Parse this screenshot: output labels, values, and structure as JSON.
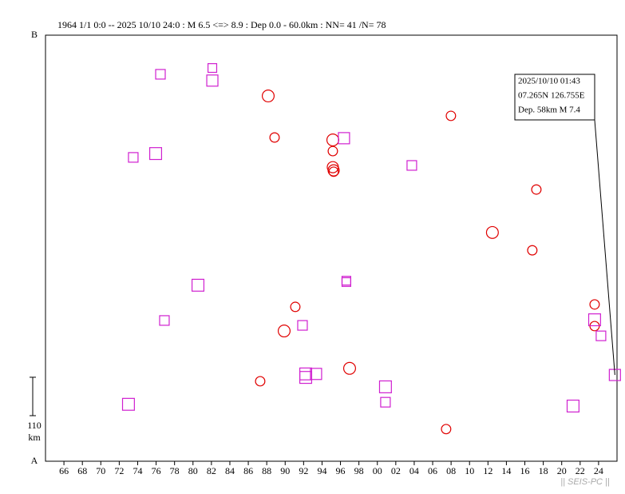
{
  "chart_data": {
    "type": "scatter",
    "title": "1964 1/1 0:0 -- 2025 10/10 24:0  : M 6.5 <=> 8.9  : Dep 0.0 - 60.0km :  NN= 41 /N= 78",
    "y_end_labels": [
      "A",
      "B"
    ],
    "scale_bar": {
      "length": 110,
      "label": "110",
      "unit": "km"
    },
    "watermark": "|| SEIS-PC ||",
    "xlim": [
      1964,
      2026
    ],
    "ylim": [
      0,
      1220
    ],
    "xticks": [
      {
        "value": 1966,
        "label": "66"
      },
      {
        "value": 1968,
        "label": "68"
      },
      {
        "value": 1970,
        "label": "70"
      },
      {
        "value": 1972,
        "label": "72"
      },
      {
        "value": 1974,
        "label": "74"
      },
      {
        "value": 1976,
        "label": "76"
      },
      {
        "value": 1978,
        "label": "78"
      },
      {
        "value": 1980,
        "label": "80"
      },
      {
        "value": 1982,
        "label": "82"
      },
      {
        "value": 1984,
        "label": "84"
      },
      {
        "value": 1986,
        "label": "86"
      },
      {
        "value": 1988,
        "label": "88"
      },
      {
        "value": 1990,
        "label": "90"
      },
      {
        "value": 1992,
        "label": "92"
      },
      {
        "value": 1994,
        "label": "94"
      },
      {
        "value": 1996,
        "label": "96"
      },
      {
        "value": 1998,
        "label": "98"
      },
      {
        "value": 2000,
        "label": "00"
      },
      {
        "value": 2002,
        "label": "02"
      },
      {
        "value": 2004,
        "label": "04"
      },
      {
        "value": 2006,
        "label": "06"
      },
      {
        "value": 2008,
        "label": "08"
      },
      {
        "value": 2010,
        "label": "10"
      },
      {
        "value": 2012,
        "label": "12"
      },
      {
        "value": 2014,
        "label": "14"
      },
      {
        "value": 2016,
        "label": "16"
      },
      {
        "value": 2018,
        "label": "18"
      },
      {
        "value": 2020,
        "label": "20"
      },
      {
        "value": 2022,
        "label": "22"
      },
      {
        "value": 2024,
        "label": "24"
      }
    ],
    "series": [
      {
        "marker": "circle",
        "color": "#e00000",
        "x": [
          1988.16,
          2007.98,
          1988.85,
          1995.17,
          1995.17,
          1995.17,
          1995.26,
          1995.26,
          2017.25,
          2012.48,
          2016.81,
          1991.1,
          1989.89,
          2023.57,
          2023.57,
          1996.99,
          1987.29,
          2007.46
        ],
        "values": [
          1046,
          989,
          927,
          920,
          888,
          842,
          833,
          829,
          778,
          655,
          604,
          442,
          373,
          449,
          387,
          266,
          229,
          92
        ],
        "sizes": [
          7.6,
          6.9,
          6.9,
          7.6,
          6.9,
          7.4,
          7.4,
          6.9,
          6.9,
          7.6,
          6.9,
          6.9,
          7.6,
          6.9,
          6.9,
          7.6,
          6.9,
          6.9
        ]
      },
      {
        "marker": "square",
        "color": "#d020d0",
        "x": [
          1976.47,
          1982.1,
          1982.1,
          1973.52,
          1975.95,
          1996.38,
          2003.74,
          1980.54,
          1996.64,
          1996.64,
          1976.9,
          1991.88,
          1992.23,
          1992.23,
          1993.35,
          2000.88,
          2000.88,
          1973.0,
          2023.57,
          2024.26,
          2021.23,
          2025.77
        ],
        "values": [
          1108,
          1126,
          1090,
          870,
          881,
          925,
          847,
          504,
          517,
          513,
          403,
          389,
          250,
          240,
          250,
          213,
          169,
          163,
          405,
          359,
          158,
          247
        ],
        "sizes": [
          6.95,
          6.7,
          7.4,
          6.95,
          7.6,
          7.4,
          6.95,
          7.6,
          6.7,
          6.7,
          6.95,
          6.95,
          7.6,
          7.6,
          7.4,
          7.6,
          6.95,
          7.6,
          7.6,
          6.95,
          7.6,
          7.4
        ]
      }
    ],
    "annotation": {
      "lines": [
        "2025/10/10 01:43",
        "07.265N  126.755E",
        "Dep. 58km    M 7.4"
      ]
    }
  }
}
